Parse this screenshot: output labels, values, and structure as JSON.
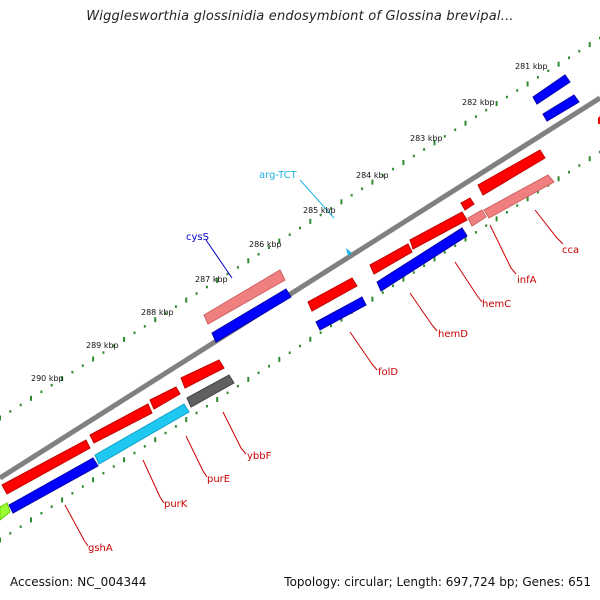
{
  "title": "Wigglesworthia glossinidia endosymbiont of Glossina brevipal...",
  "footer": {
    "accession": "Accession: NC_004344",
    "topology": "Topology: circular; Length: 697,724 bp; Genes: 651"
  },
  "colors": {
    "backbone": "#808080",
    "gc_dots": "#2e8b2e",
    "forward_gene": "#ff0000",
    "reverse_gene": "#0000ff",
    "rrna_like": "#f08080",
    "trna": "#00bfff",
    "other": "#606060",
    "tick_label": "#111111",
    "label_line": "#cc0000",
    "trna_label": "#1eb4e6",
    "cys_label": "#0000cc"
  },
  "scale_labels": [
    "281 kbp",
    "282 kbp",
    "283 kbp",
    "284 kbp",
    "285 kbp",
    "286 kbp",
    "287 kbp",
    "288 kbp",
    "289 kbp",
    "290 kbp"
  ],
  "gene_labels": [
    "cca",
    "infA",
    "hemC",
    "hemD",
    "folD",
    "ybbF",
    "purE",
    "purK",
    "gshA"
  ],
  "trna_labels": [
    "arg-TCT",
    "cysS"
  ]
}
